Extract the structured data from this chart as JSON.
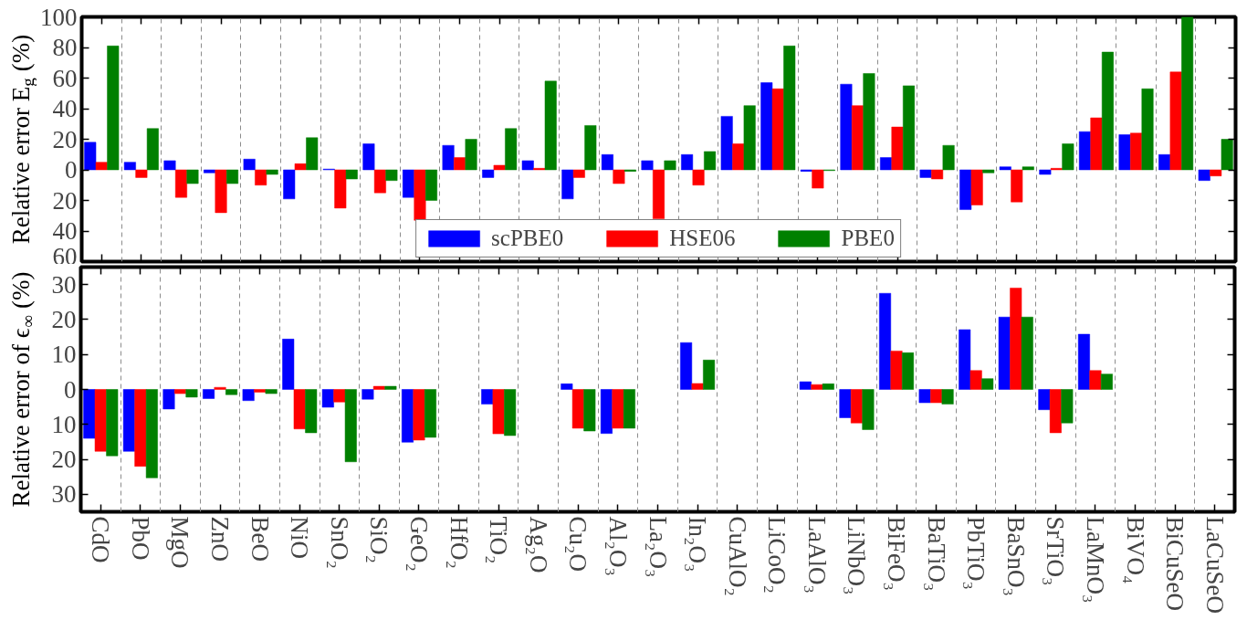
{
  "chart_data": [
    {
      "type": "bar",
      "ylabel": "Relative error E$_{g}$ (%)",
      "categories": [
        "CdO",
        "PbO",
        "MgO",
        "ZnO",
        "BeO",
        "NiO",
        "SnO₂",
        "SiO₂",
        "GeO₂",
        "HfO₂",
        "TiO₂",
        "Ag₂O",
        "Cu₂O",
        "Al₂O₃",
        "La₂O₃",
        "In₂O₃",
        "CuAlO₂",
        "LiCoO₂",
        "LaAlO₃",
        "LiNbO₃",
        "BiFeO₃",
        "BaTiO₃",
        "PbTiO₃",
        "BaSnO₃",
        "SrTiO₃",
        "LaMnO₃",
        "BiVO₄",
        "BiCuSeO",
        "LaCuSeO"
      ],
      "series": [
        {
          "name": "scPBE0",
          "color": "#0000ff",
          "values": [
            18,
            5,
            6,
            -2,
            7,
            -19,
            0.5,
            17,
            -18,
            16,
            -5,
            6,
            -19,
            10,
            6,
            10,
            35,
            57,
            -1,
            56,
            8,
            -5,
            -26,
            2,
            -3,
            25,
            23,
            10,
            -7
          ]
        },
        {
          "name": "HSE06",
          "color": "#ff0000",
          "values": [
            5,
            -5,
            -18,
            -28,
            -10,
            4,
            -25,
            -15,
            -33,
            8,
            3,
            1,
            -5,
            -9,
            -32,
            -10,
            17,
            53,
            -12,
            42,
            28,
            -6,
            -23,
            -21,
            1,
            34,
            24,
            64,
            -4
          ]
        },
        {
          "name": "PBE0",
          "color": "#008000",
          "values": [
            81,
            27,
            -9,
            -9,
            -3,
            21,
            -6,
            -7,
            -20,
            20,
            27,
            58,
            29,
            -1,
            6,
            12,
            42,
            81,
            -0.5,
            63,
            55,
            16,
            -2,
            2,
            17,
            77,
            53,
            100,
            20
          ]
        }
      ],
      "ylim": [
        -60,
        100
      ],
      "yticks": [
        100,
        80,
        60,
        40,
        20,
        0,
        {
          "value": -20,
          "label": "20"
        },
        {
          "value": -40,
          "label": "40"
        },
        {
          "value": -60,
          "label": "60"
        }
      ],
      "grid": "x",
      "legend": "bottom",
      "tick_labels": "y"
    },
    {
      "type": "bar",
      "ylabel": "Relative error of ϵ$_{∞}$ (%)",
      "categories": [
        "CdO",
        "PbO",
        "MgO",
        "ZnO",
        "BeO",
        "NiO",
        "SnO₂",
        "SiO₂",
        "GeO₂",
        "HfO₂",
        "TiO₂",
        "Ag₂O",
        "Cu₂O",
        "Al₂O₃",
        "La₂O₃",
        "In₂O₃",
        "CuAlO₂",
        "LiCoO₂",
        "LaAlO₃",
        "LiNbO₃",
        "BiFeO₃",
        "BaTiO₃",
        "PbTiO₃",
        "BaSnO₃",
        "SrTiO₃",
        "LaMnO₃",
        "BiVO₄",
        "BiCuSeO",
        "LaCuSeO"
      ],
      "series": [
        {
          "color": "#0000ff",
          "values": [
            -14,
            -17.7,
            -5.6,
            -2.6,
            -3.2,
            14.4,
            -5.1,
            -2.8,
            -15.1,
            null,
            -4.2,
            null,
            1.6,
            -12.6,
            null,
            13.4,
            null,
            null,
            2.2,
            -8.1,
            27.5,
            -3.8,
            17.1,
            20.7,
            -5.8,
            15.8,
            null,
            null,
            null
          ]
        },
        {
          "color": "#ff0000",
          "values": [
            -17.7,
            -22,
            -1.2,
            0.6,
            -0.8,
            -11.3,
            -3.6,
            0.9,
            -14.5,
            null,
            -12.7,
            null,
            -11.1,
            -11.1,
            null,
            1.7,
            null,
            null,
            1.4,
            -9.6,
            11,
            -3.8,
            5.4,
            29,
            -12.4,
            5.4,
            null,
            null,
            null
          ]
        },
        {
          "color": "#008000",
          "values": [
            -19,
            -25.3,
            -2.2,
            -1.5,
            -1.2,
            -12.4,
            -20.7,
            0.9,
            -13.7,
            null,
            -13.2,
            null,
            -11.9,
            -11.1,
            null,
            8.4,
            null,
            null,
            1.6,
            -11.5,
            10.5,
            -4.2,
            3.1,
            20.7,
            -9.6,
            4.4,
            null,
            null,
            null
          ]
        }
      ],
      "ylim": [
        -35,
        35
      ],
      "yticks": [
        30,
        20,
        10,
        0,
        {
          "value": -10,
          "label": "10"
        },
        {
          "value": -20,
          "label": "20"
        },
        {
          "value": -30,
          "label": "30"
        }
      ],
      "grid": "x"
    }
  ]
}
